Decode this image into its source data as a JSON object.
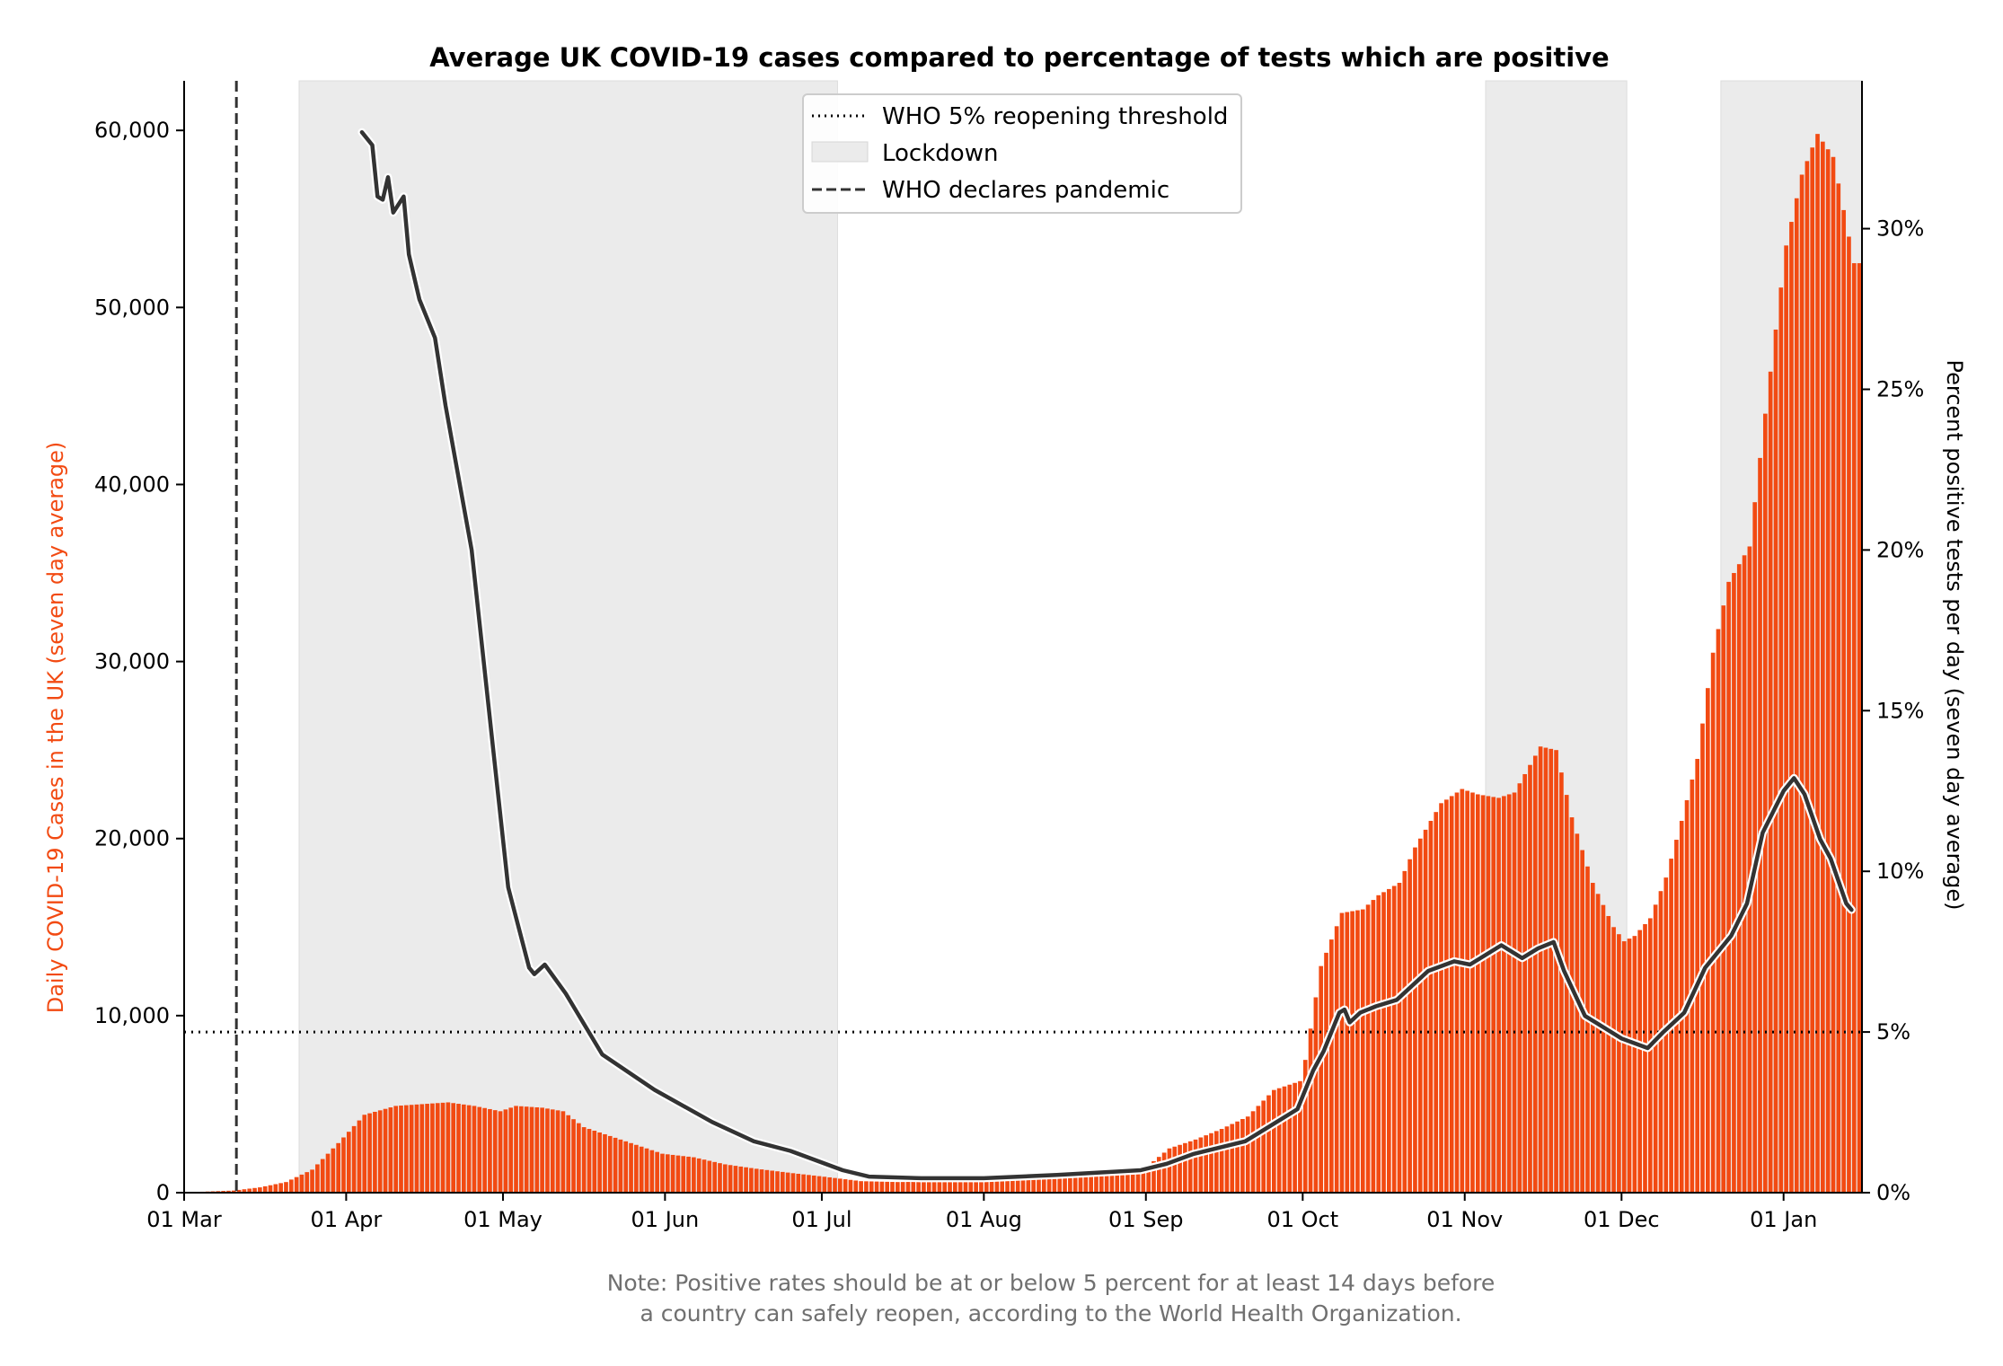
{
  "chart_data": {
    "type": "bar",
    "title": "Average UK COVID-19 cases compared to percentage of tests which are positive",
    "ylabel": "Daily COVID-19 Cases in the UK (seven day average)",
    "y2label": "Percent positive tests per day (seven day average)",
    "xlim": [
      "2020-03-01",
      "2021-01-16"
    ],
    "ylim": [
      0,
      62800
    ],
    "y2lim": [
      0,
      34.6
    ],
    "yticks": [
      0,
      10000,
      20000,
      30000,
      40000,
      50000,
      60000
    ],
    "yticklabels": [
      "0",
      "10,000",
      "20,000",
      "30,000",
      "40,000",
      "50,000",
      "60,000"
    ],
    "y2ticks": [
      0,
      5,
      10,
      15,
      20,
      25,
      30
    ],
    "y2ticklabels": [
      "0%",
      "5%",
      "10%",
      "15%",
      "20%",
      "25%",
      "30%"
    ],
    "xticks": [
      "2020-03-01",
      "2020-04-01",
      "2020-05-01",
      "2020-06-01",
      "2020-07-01",
      "2020-08-01",
      "2020-09-01",
      "2020-10-01",
      "2020-11-01",
      "2020-12-01",
      "2021-01-01"
    ],
    "xticklabels": [
      "01 Mar",
      "01 Apr",
      "01 May",
      "01 Jun",
      "01 Jul",
      "01 Aug",
      "01 Sep",
      "01 Oct",
      "01 Nov",
      "01 Dec",
      "01 Jan"
    ],
    "grid": false,
    "colors": {
      "bars": "#f24a12",
      "line": "#333333",
      "lockdown": "#ebebeb",
      "left_axis_label": "#f24a12"
    },
    "legend": {
      "placement": "top-center",
      "entries": [
        {
          "label": "WHO 5% reopening threshold",
          "style": "dotted"
        },
        {
          "label": "Lockdown",
          "style": "patch"
        },
        {
          "label": "WHO declares pandemic",
          "style": "dashed"
        }
      ]
    },
    "threshold_percent": 5,
    "pandemic_declared": "2020-03-11",
    "lockdowns": [
      {
        "start": "2020-03-23",
        "end": "2020-07-04"
      },
      {
        "start": "2020-11-05",
        "end": "2020-12-02"
      },
      {
        "start": "2020-12-20",
        "end": "2021-01-16"
      }
    ],
    "cases_anchors": [
      [
        "2020-03-01",
        20
      ],
      [
        "2020-03-10",
        120
      ],
      [
        "2020-03-15",
        300
      ],
      [
        "2020-03-20",
        600
      ],
      [
        "2020-03-25",
        1300
      ],
      [
        "2020-03-30",
        2800
      ],
      [
        "2020-04-04",
        4400
      ],
      [
        "2020-04-10",
        4900
      ],
      [
        "2020-04-15",
        5000
      ],
      [
        "2020-04-20",
        5100
      ],
      [
        "2020-04-25",
        4900
      ],
      [
        "2020-04-30",
        4600
      ],
      [
        "2020-05-03",
        4900
      ],
      [
        "2020-05-08",
        4800
      ],
      [
        "2020-05-12",
        4600
      ],
      [
        "2020-05-16",
        3700
      ],
      [
        "2020-05-20",
        3300
      ],
      [
        "2020-05-25",
        2800
      ],
      [
        "2020-05-31",
        2200
      ],
      [
        "2020-06-06",
        2000
      ],
      [
        "2020-06-12",
        1600
      ],
      [
        "2020-06-18",
        1350
      ],
      [
        "2020-06-25",
        1100
      ],
      [
        "2020-07-01",
        900
      ],
      [
        "2020-07-08",
        650
      ],
      [
        "2020-07-15",
        600
      ],
      [
        "2020-07-22",
        620
      ],
      [
        "2020-08-01",
        720
      ],
      [
        "2020-08-10",
        800
      ],
      [
        "2020-08-20",
        1050
      ],
      [
        "2020-08-31",
        1300
      ],
      [
        "2020-09-05",
        2500
      ],
      [
        "2020-09-10",
        3000
      ],
      [
        "2020-09-15",
        3600
      ],
      [
        "2020-09-20",
        4300
      ],
      [
        "2020-09-25",
        5800
      ],
      [
        "2020-09-30",
        6300
      ],
      [
        "2020-10-01",
        7500
      ],
      [
        "2020-10-04",
        12800
      ],
      [
        "2020-10-08",
        15800
      ],
      [
        "2020-10-12",
        16000
      ],
      [
        "2020-10-15",
        16800
      ],
      [
        "2020-10-19",
        17500
      ],
      [
        "2020-10-22",
        19500
      ],
      [
        "2020-10-27",
        22000
      ],
      [
        "2020-10-31",
        22800
      ],
      [
        "2020-11-03",
        22500
      ],
      [
        "2020-11-07",
        22300
      ],
      [
        "2020-11-10",
        22600
      ],
      [
        "2020-11-15",
        25200
      ],
      [
        "2020-11-18",
        25000
      ],
      [
        "2020-11-21",
        21200
      ],
      [
        "2020-11-25",
        17500
      ],
      [
        "2020-11-29",
        15000
      ],
      [
        "2020-12-01",
        14200
      ],
      [
        "2020-12-03",
        14500
      ],
      [
        "2020-12-06",
        15500
      ],
      [
        "2020-12-09",
        17800
      ],
      [
        "2020-12-12",
        21000
      ],
      [
        "2020-12-15",
        24500
      ],
      [
        "2020-12-18",
        30500
      ],
      [
        "2020-12-21",
        34500
      ],
      [
        "2020-12-25",
        36500
      ],
      [
        "2020-12-28",
        44000
      ],
      [
        "2021-01-01",
        53500
      ],
      [
        "2021-01-04",
        57500
      ],
      [
        "2021-01-07",
        59800
      ],
      [
        "2021-01-10",
        58500
      ],
      [
        "2021-01-14",
        52500
      ]
    ],
    "positivity_anchors": [
      [
        "2020-04-04",
        33.0
      ],
      [
        "2020-04-06",
        32.6
      ],
      [
        "2020-04-07",
        31.0
      ],
      [
        "2020-04-08",
        30.9
      ],
      [
        "2020-04-09",
        31.6
      ],
      [
        "2020-04-10",
        30.5
      ],
      [
        "2020-04-12",
        31.0
      ],
      [
        "2020-04-13",
        29.2
      ],
      [
        "2020-04-15",
        27.8
      ],
      [
        "2020-04-18",
        26.6
      ],
      [
        "2020-04-20",
        24.5
      ],
      [
        "2020-04-25",
        20.0
      ],
      [
        "2020-04-29",
        14.0
      ],
      [
        "2020-05-02",
        9.5
      ],
      [
        "2020-05-06",
        7.0
      ],
      [
        "2020-05-07",
        6.8
      ],
      [
        "2020-05-09",
        7.1
      ],
      [
        "2020-05-13",
        6.2
      ],
      [
        "2020-05-20",
        4.3
      ],
      [
        "2020-05-30",
        3.2
      ],
      [
        "2020-06-10",
        2.2
      ],
      [
        "2020-06-18",
        1.6
      ],
      [
        "2020-06-25",
        1.3
      ],
      [
        "2020-07-05",
        0.7
      ],
      [
        "2020-07-10",
        0.5
      ],
      [
        "2020-07-20",
        0.45
      ],
      [
        "2020-08-01",
        0.45
      ],
      [
        "2020-08-15",
        0.55
      ],
      [
        "2020-08-31",
        0.7
      ],
      [
        "2020-09-05",
        0.9
      ],
      [
        "2020-09-10",
        1.2
      ],
      [
        "2020-09-15",
        1.4
      ],
      [
        "2020-09-20",
        1.6
      ],
      [
        "2020-09-25",
        2.1
      ],
      [
        "2020-09-30",
        2.6
      ],
      [
        "2020-10-03",
        3.8
      ],
      [
        "2020-10-05",
        4.4
      ],
      [
        "2020-10-08",
        5.6
      ],
      [
        "2020-10-09",
        5.7
      ],
      [
        "2020-10-10",
        5.3
      ],
      [
        "2020-10-12",
        5.6
      ],
      [
        "2020-10-15",
        5.8
      ],
      [
        "2020-10-19",
        6.0
      ],
      [
        "2020-10-25",
        6.9
      ],
      [
        "2020-10-30",
        7.2
      ],
      [
        "2020-11-02",
        7.1
      ],
      [
        "2020-11-08",
        7.7
      ],
      [
        "2020-11-12",
        7.3
      ],
      [
        "2020-11-15",
        7.6
      ],
      [
        "2020-11-18",
        7.8
      ],
      [
        "2020-11-20",
        6.9
      ],
      [
        "2020-11-24",
        5.5
      ],
      [
        "2020-11-28",
        5.1
      ],
      [
        "2020-12-01",
        4.8
      ],
      [
        "2020-12-06",
        4.5
      ],
      [
        "2020-12-09",
        5.0
      ],
      [
        "2020-12-13",
        5.6
      ],
      [
        "2020-12-17",
        7.0
      ],
      [
        "2020-12-22",
        8.0
      ],
      [
        "2020-12-25",
        9.0
      ],
      [
        "2020-12-28",
        11.2
      ],
      [
        "2021-01-01",
        12.5
      ],
      [
        "2021-01-03",
        12.9
      ],
      [
        "2021-01-05",
        12.4
      ],
      [
        "2021-01-08",
        11.0
      ],
      [
        "2021-01-10",
        10.4
      ],
      [
        "2021-01-13",
        9.0
      ],
      [
        "2021-01-14",
        8.8
      ]
    ],
    "note_lines": [
      "Note: Positive rates should be at or below 5 percent for at least 14 days before",
      "a country can safely reopen, according to the World Health Organization."
    ]
  }
}
